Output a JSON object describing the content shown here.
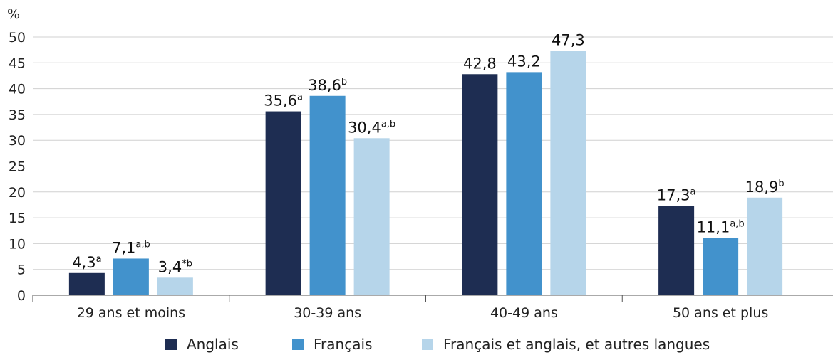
{
  "chart_data": {
    "type": "bar",
    "unit_label": "%",
    "categories": [
      "29 ans et moins",
      "30-39 ans",
      "40-49 ans",
      "50 ans et plus"
    ],
    "ylim": [
      0,
      50
    ],
    "yticks": [
      "0",
      "5",
      "10",
      "15",
      "20",
      "25",
      "30",
      "35",
      "40",
      "45",
      "50"
    ],
    "grid": true,
    "legend_position": "bottom",
    "series": [
      {
        "name": "Anglais",
        "color": "#1e2d52",
        "values": [
          4.3,
          35.6,
          42.8,
          17.3
        ],
        "labels": [
          "4,3",
          "35,6",
          "42,8",
          "17,3"
        ],
        "notes": [
          "a",
          "a",
          "",
          "a"
        ]
      },
      {
        "name": "Français",
        "color": "#4292cc",
        "values": [
          7.1,
          38.6,
          43.2,
          11.1
        ],
        "labels": [
          "7,1",
          "38,6",
          "43,2",
          "11,1"
        ],
        "notes": [
          "a,b",
          "b",
          "",
          "a,b"
        ]
      },
      {
        "name": "Français et anglais, et autres langues",
        "color": "#b6d5ea",
        "values": [
          3.4,
          30.4,
          47.3,
          18.9
        ],
        "labels": [
          "3,4",
          "30,4",
          "47,3",
          "18,9"
        ],
        "notes": [
          "*b",
          "a,b",
          "",
          "b"
        ]
      }
    ]
  }
}
